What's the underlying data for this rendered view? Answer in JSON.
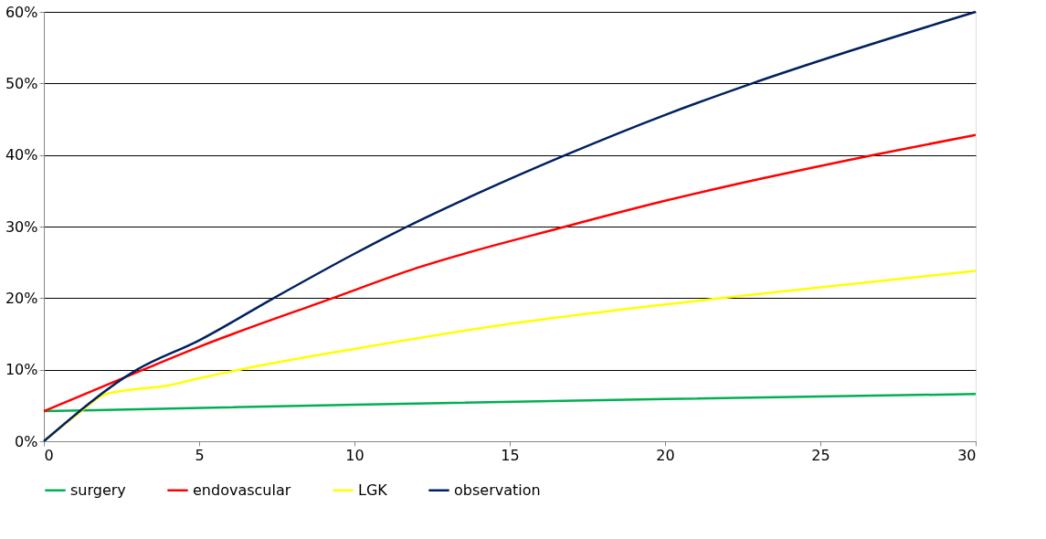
{
  "chart_data": {
    "type": "line",
    "xlim": [
      0,
      30
    ],
    "xticks": [
      0,
      5,
      10,
      15,
      20,
      25,
      30
    ],
    "ylim": [
      0,
      60
    ],
    "yticks": [
      {
        "value": 0,
        "label": "0%"
      },
      {
        "value": 10,
        "label": "10%"
      },
      {
        "value": 20,
        "label": "20%"
      },
      {
        "value": 30,
        "label": "30%"
      },
      {
        "value": 40,
        "label": "40%"
      },
      {
        "value": 50,
        "label": "50%"
      },
      {
        "value": 60,
        "label": "60%"
      }
    ],
    "grid": "y",
    "legend": "bottom",
    "marker": "none",
    "line_style": "solid",
    "series": [
      {
        "name": "surgery",
        "color": "#00b050",
        "x": [
          0,
          10,
          20,
          30
        ],
        "values": [
          4.2,
          5.1,
          5.9,
          6.6
        ]
      },
      {
        "name": "endovascular",
        "color": "#ff0000",
        "x": [
          0,
          3.2,
          5,
          9.3,
          12,
          16.8,
          20,
          23,
          26.7,
          30
        ],
        "values": [
          4.2,
          10,
          13.2,
          20,
          24.2,
          30,
          33.6,
          36.6,
          40,
          42.8
        ]
      },
      {
        "name": "LGK",
        "color": "#ffff00",
        "x": [
          0,
          1,
          2,
          3,
          4,
          5,
          6.3,
          10,
          15,
          21.8,
          25,
          30
        ],
        "values": [
          0,
          3.5,
          6.6,
          7.3,
          7.8,
          8.8,
          10,
          12.9,
          16.4,
          20,
          21.5,
          23.8
        ]
      },
      {
        "name": "observation",
        "color": "#002060",
        "x": [
          0,
          3,
          5,
          7.4,
          10,
          11.7,
          14,
          16.8,
          20,
          22.8,
          26,
          30
        ],
        "values": [
          0,
          10,
          14.1,
          20,
          26.2,
          30,
          34.7,
          40,
          45.6,
          50,
          54.6,
          60
        ]
      }
    ]
  }
}
